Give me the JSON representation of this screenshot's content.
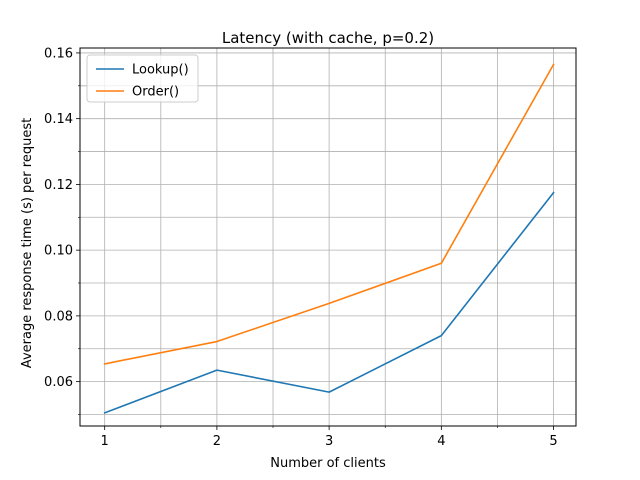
{
  "chart_data": {
    "type": "line",
    "title": "Latency (with cache, p=0.2)",
    "xlabel": "Number of clients",
    "ylabel": "Average response time (s) per request",
    "x": [
      1,
      2,
      3,
      4,
      5
    ],
    "xlim": [
      0.78,
      5.2
    ],
    "ylim": [
      0.0465,
      0.1615
    ],
    "xticks": [
      1,
      2,
      3,
      4,
      5
    ],
    "xminor": [
      1.5,
      2.5,
      3.5,
      4.5
    ],
    "yticks": [
      0.06,
      0.08,
      0.1,
      0.12,
      0.14,
      0.16
    ],
    "ytick_labels": [
      "0.06",
      "0.08",
      "0.10",
      "0.12",
      "0.14",
      "0.16"
    ],
    "yminor": [
      0.05,
      0.07,
      0.09,
      0.11,
      0.13,
      0.15
    ],
    "grid": true,
    "legend_position": "top-left",
    "series": [
      {
        "name": "Lookup()",
        "color": "#1f77b4",
        "values": [
          0.0505,
          0.0635,
          0.0568,
          0.074,
          0.1175
        ]
      },
      {
        "name": "Order()",
        "color": "#ff7f0e",
        "values": [
          0.0654,
          0.0722,
          0.0838,
          0.096,
          0.1565
        ]
      }
    ]
  }
}
